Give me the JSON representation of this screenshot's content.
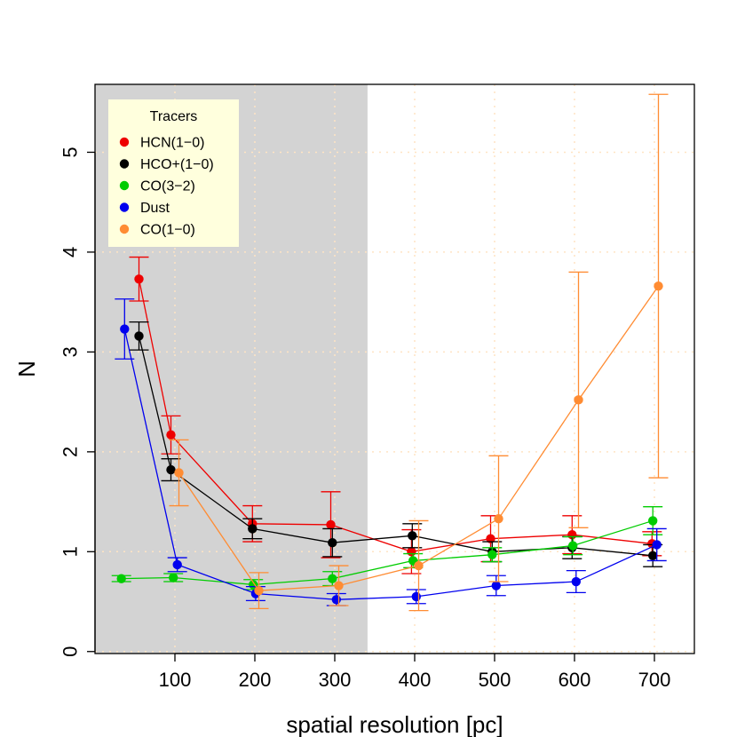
{
  "chart_data": {
    "type": "line",
    "xlabel": "spatial resolution [pc]",
    "ylabel": "N",
    "xlim": [
      0,
      750
    ],
    "ylim": [
      -0.02,
      5.68
    ],
    "xticks": [
      100,
      200,
      300,
      400,
      500,
      600,
      700
    ],
    "yticks": [
      0,
      1,
      2,
      3,
      4,
      5
    ],
    "grid": true,
    "shaded_region": {
      "x_from": 0,
      "x_to": 341,
      "color": "#d3d3d3"
    },
    "legend": {
      "title": "Tracers",
      "placement": "top-left",
      "entries": [
        "HCN(1−0)",
        "HCO+(1−0)",
        "CO(3−2)",
        "Dust",
        "CO(1−0)"
      ]
    },
    "series": [
      {
        "name": "HCN(1−0)",
        "color": "#ee0000",
        "points": [
          {
            "x": 55,
            "y": 3.73,
            "lo": 3.51,
            "hi": 3.95
          },
          {
            "x": 95,
            "y": 2.17,
            "lo": 1.98,
            "hi": 2.36
          },
          {
            "x": 197,
            "y": 1.28,
            "lo": 1.1,
            "hi": 1.46
          },
          {
            "x": 295,
            "y": 1.27,
            "lo": 0.94,
            "hi": 1.6
          },
          {
            "x": 396,
            "y": 1.0,
            "lo": 0.78,
            "hi": 1.22
          },
          {
            "x": 495,
            "y": 1.13,
            "lo": 0.9,
            "hi": 1.36
          },
          {
            "x": 597,
            "y": 1.17,
            "lo": 0.98,
            "hi": 1.36
          },
          {
            "x": 697,
            "y": 1.08,
            "lo": 0.96,
            "hi": 1.2
          }
        ]
      },
      {
        "name": "HCO+(1−0)",
        "color": "#000000",
        "points": [
          {
            "x": 55,
            "y": 3.16,
            "lo": 3.02,
            "hi": 3.3
          },
          {
            "x": 95,
            "y": 1.82,
            "lo": 1.71,
            "hi": 1.93
          },
          {
            "x": 197,
            "y": 1.23,
            "lo": 1.13,
            "hi": 1.33
          },
          {
            "x": 297,
            "y": 1.09,
            "lo": 0.95,
            "hi": 1.23
          },
          {
            "x": 397,
            "y": 1.16,
            "lo": 1.04,
            "hi": 1.28
          },
          {
            "x": 497,
            "y": 1.0,
            "lo": 0.9,
            "hi": 1.1
          },
          {
            "x": 597,
            "y": 1.04,
            "lo": 0.93,
            "hi": 1.15
          },
          {
            "x": 698,
            "y": 0.96,
            "lo": 0.85,
            "hi": 1.07
          }
        ]
      },
      {
        "name": "CO(3−2)",
        "color": "#00cc00",
        "points": [
          {
            "x": 33,
            "y": 0.73,
            "lo": 0.7,
            "hi": 0.76
          },
          {
            "x": 98,
            "y": 0.74,
            "lo": 0.7,
            "hi": 0.78
          },
          {
            "x": 198,
            "y": 0.67,
            "lo": 0.62,
            "hi": 0.72
          },
          {
            "x": 297,
            "y": 0.73,
            "lo": 0.66,
            "hi": 0.8
          },
          {
            "x": 398,
            "y": 0.91,
            "lo": 0.84,
            "hi": 0.98
          },
          {
            "x": 497,
            "y": 0.97,
            "lo": 0.9,
            "hi": 1.04
          },
          {
            "x": 598,
            "y": 1.06,
            "lo": 0.97,
            "hi": 1.15
          },
          {
            "x": 698,
            "y": 1.31,
            "lo": 1.17,
            "hi": 1.45
          }
        ]
      },
      {
        "name": "Dust",
        "color": "#0000ee",
        "points": [
          {
            "x": 37,
            "y": 3.23,
            "lo": 2.93,
            "hi": 3.53
          },
          {
            "x": 103,
            "y": 0.87,
            "lo": 0.8,
            "hi": 0.94
          },
          {
            "x": 201,
            "y": 0.58,
            "lo": 0.51,
            "hi": 0.65
          },
          {
            "x": 302,
            "y": 0.52,
            "lo": 0.46,
            "hi": 0.58
          },
          {
            "x": 402,
            "y": 0.55,
            "lo": 0.48,
            "hi": 0.62
          },
          {
            "x": 502,
            "y": 0.66,
            "lo": 0.56,
            "hi": 0.76
          },
          {
            "x": 602,
            "y": 0.7,
            "lo": 0.59,
            "hi": 0.81
          },
          {
            "x": 703,
            "y": 1.07,
            "lo": 0.91,
            "hi": 1.23
          }
        ]
      },
      {
        "name": "CO(1−0)",
        "color": "#ff8c33",
        "points": [
          {
            "x": 105,
            "y": 1.79,
            "lo": 1.46,
            "hi": 2.12
          },
          {
            "x": 205,
            "y": 0.61,
            "lo": 0.43,
            "hi": 0.79
          },
          {
            "x": 305,
            "y": 0.66,
            "lo": 0.46,
            "hi": 0.86
          },
          {
            "x": 405,
            "y": 0.86,
            "lo": 0.41,
            "hi": 1.31
          },
          {
            "x": 505,
            "y": 1.33,
            "lo": 0.7,
            "hi": 1.96
          },
          {
            "x": 605,
            "y": 2.52,
            "lo": 1.24,
            "hi": 3.8
          },
          {
            "x": 705,
            "y": 3.66,
            "lo": 1.74,
            "hi": 5.58
          }
        ]
      }
    ]
  }
}
